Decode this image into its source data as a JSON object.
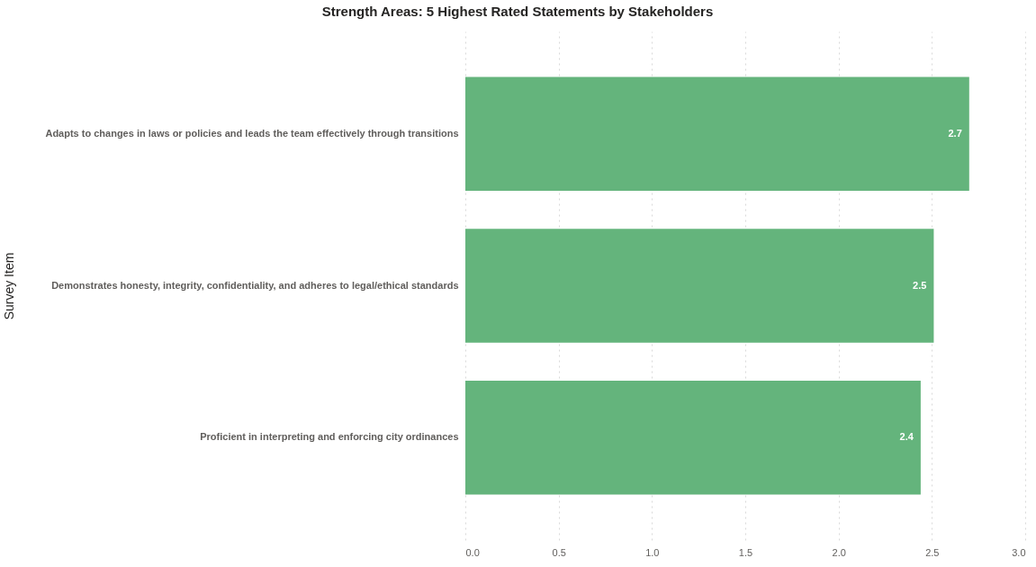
{
  "chart_data": {
    "type": "bar",
    "orientation": "horizontal",
    "title": "Strength Areas: 5 Highest Rated Statements by Stakeholders",
    "ylabel": "Survey Item",
    "categories": [
      "Adapts to changes in laws or policies and leads the team effectively through transitions",
      "Demonstrates honesty, integrity, confidentiality, and adheres to legal/ethical standards",
      "Proficient in interpreting and enforcing city ordinances"
    ],
    "values": [
      2.7,
      2.51,
      2.44
    ],
    "value_labels": [
      "2.7",
      "2.5",
      "2.4"
    ],
    "color": "#64b47c",
    "xlim": [
      0,
      3
    ],
    "xticks": [
      {
        "value": 0,
        "label": "0.0"
      },
      {
        "value": 0.5,
        "label": "0.5"
      },
      {
        "value": 1,
        "label": "1.0"
      },
      {
        "value": 1.5,
        "label": "1.5"
      },
      {
        "value": 2,
        "label": "2.0"
      },
      {
        "value": 2.5,
        "label": "2.5"
      },
      {
        "value": 3,
        "label": "3.0"
      }
    ],
    "grid": "x"
  }
}
